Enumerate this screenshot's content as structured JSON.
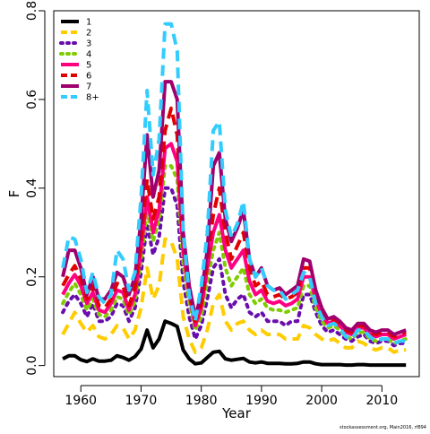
{
  "credit": "stockassessment.org, Main2016, rf894",
  "chart_data": {
    "type": "line",
    "xlabel": "Year",
    "ylabel": "F",
    "xlim": [
      1955.5,
      2016.2
    ],
    "ylim": [
      -0.025,
      0.8
    ],
    "x_ticks": [
      1960,
      1970,
      1980,
      1990,
      2000,
      2010
    ],
    "y_ticks": [
      0.0,
      0.2,
      0.4,
      0.6,
      0.8
    ],
    "x_tick_labels": [
      "1960",
      "1970",
      "1980",
      "1990",
      "2000",
      "2010"
    ],
    "y_tick_labels": [
      "0.0",
      "0.2",
      "0.4",
      "0.6",
      "0.8"
    ],
    "grid": false,
    "legend_position": "top-left",
    "x": [
      1957,
      1958,
      1959,
      1960,
      1961,
      1962,
      1963,
      1964,
      1965,
      1966,
      1967,
      1968,
      1969,
      1970,
      1971,
      1972,
      1973,
      1974,
      1975,
      1976,
      1977,
      1978,
      1979,
      1980,
      1981,
      1982,
      1983,
      1984,
      1985,
      1986,
      1987,
      1988,
      1989,
      1990,
      1991,
      1992,
      1993,
      1994,
      1995,
      1996,
      1997,
      1998,
      1999,
      2000,
      2001,
      2002,
      2003,
      2004,
      2005,
      2006,
      2007,
      2008,
      2009,
      2010,
      2011,
      2012,
      2013,
      2014
    ],
    "series": [
      {
        "name": "1",
        "color": "#000000",
        "dash": "solid",
        "values": [
          0.015,
          0.022,
          0.022,
          0.013,
          0.009,
          0.015,
          0.01,
          0.01,
          0.012,
          0.022,
          0.018,
          0.012,
          0.02,
          0.037,
          0.08,
          0.04,
          0.06,
          0.1,
          0.095,
          0.088,
          0.035,
          0.015,
          0.004,
          0.006,
          0.018,
          0.03,
          0.032,
          0.015,
          0.012,
          0.014,
          0.016,
          0.008,
          0.006,
          0.008,
          0.005,
          0.005,
          0.005,
          0.004,
          0.004,
          0.005,
          0.008,
          0.008,
          0.004,
          0.002,
          0.002,
          0.002,
          0.002,
          0.001,
          0.001,
          0.002,
          0.002,
          0.001,
          0.001,
          0.001,
          0.001,
          0.001,
          0.001,
          0.001
        ]
      },
      {
        "name": "2",
        "color": "#ffcc00",
        "dash": "dashed",
        "values": [
          0.07,
          0.095,
          0.12,
          0.095,
          0.075,
          0.09,
          0.065,
          0.06,
          0.07,
          0.09,
          0.085,
          0.06,
          0.08,
          0.13,
          0.22,
          0.15,
          0.18,
          0.285,
          0.28,
          0.24,
          0.11,
          0.06,
          0.03,
          0.04,
          0.08,
          0.14,
          0.16,
          0.1,
          0.08,
          0.095,
          0.1,
          0.08,
          0.07,
          0.08,
          0.07,
          0.07,
          0.07,
          0.06,
          0.06,
          0.06,
          0.09,
          0.085,
          0.07,
          0.06,
          0.055,
          0.06,
          0.05,
          0.04,
          0.04,
          0.055,
          0.05,
          0.04,
          0.035,
          0.04,
          0.04,
          0.03,
          0.035,
          0.035
        ]
      },
      {
        "name": "3",
        "color": "#6a0dad",
        "dash": "dotted",
        "values": [
          0.12,
          0.145,
          0.16,
          0.14,
          0.11,
          0.14,
          0.1,
          0.1,
          0.11,
          0.14,
          0.135,
          0.1,
          0.13,
          0.21,
          0.32,
          0.25,
          0.29,
          0.4,
          0.4,
          0.36,
          0.19,
          0.11,
          0.06,
          0.09,
          0.15,
          0.22,
          0.24,
          0.16,
          0.13,
          0.15,
          0.16,
          0.12,
          0.11,
          0.12,
          0.1,
          0.1,
          0.1,
          0.09,
          0.1,
          0.1,
          0.16,
          0.16,
          0.12,
          0.09,
          0.075,
          0.08,
          0.07,
          0.06,
          0.055,
          0.065,
          0.07,
          0.055,
          0.05,
          0.055,
          0.055,
          0.045,
          0.05,
          0.05
        ]
      },
      {
        "name": "4",
        "color": "#7fcc00",
        "dash": "dotted",
        "values": [
          0.14,
          0.165,
          0.185,
          0.16,
          0.125,
          0.15,
          0.115,
          0.11,
          0.125,
          0.155,
          0.15,
          0.115,
          0.145,
          0.24,
          0.35,
          0.28,
          0.33,
          0.45,
          0.45,
          0.42,
          0.23,
          0.14,
          0.08,
          0.11,
          0.19,
          0.26,
          0.3,
          0.22,
          0.18,
          0.2,
          0.22,
          0.16,
          0.14,
          0.15,
          0.13,
          0.125,
          0.125,
          0.12,
          0.125,
          0.13,
          0.18,
          0.18,
          0.13,
          0.1,
          0.085,
          0.09,
          0.08,
          0.065,
          0.06,
          0.075,
          0.075,
          0.06,
          0.055,
          0.06,
          0.06,
          0.05,
          0.055,
          0.06
        ]
      },
      {
        "name": "5",
        "color": "#ff0080",
        "dash": "solid",
        "values": [
          0.16,
          0.185,
          0.205,
          0.18,
          0.14,
          0.165,
          0.125,
          0.12,
          0.14,
          0.17,
          0.165,
          0.125,
          0.16,
          0.265,
          0.38,
          0.3,
          0.35,
          0.49,
          0.5,
          0.46,
          0.26,
          0.16,
          0.09,
          0.13,
          0.22,
          0.3,
          0.34,
          0.26,
          0.22,
          0.24,
          0.26,
          0.19,
          0.16,
          0.17,
          0.145,
          0.14,
          0.145,
          0.135,
          0.14,
          0.15,
          0.2,
          0.2,
          0.15,
          0.115,
          0.095,
          0.1,
          0.09,
          0.075,
          0.07,
          0.085,
          0.085,
          0.07,
          0.065,
          0.07,
          0.07,
          0.06,
          0.065,
          0.07
        ]
      },
      {
        "name": "6",
        "color": "#e00000",
        "dash": "dashed",
        "values": [
          0.18,
          0.205,
          0.225,
          0.195,
          0.15,
          0.18,
          0.135,
          0.13,
          0.15,
          0.185,
          0.18,
          0.135,
          0.175,
          0.29,
          0.42,
          0.33,
          0.38,
          0.53,
          0.58,
          0.52,
          0.28,
          0.17,
          0.1,
          0.14,
          0.24,
          0.34,
          0.4,
          0.3,
          0.24,
          0.27,
          0.3,
          0.22,
          0.18,
          0.19,
          0.16,
          0.155,
          0.16,
          0.15,
          0.155,
          0.165,
          0.22,
          0.22,
          0.16,
          0.125,
          0.1,
          0.105,
          0.095,
          0.08,
          0.075,
          0.09,
          0.09,
          0.075,
          0.07,
          0.075,
          0.075,
          0.065,
          0.07,
          0.075
        ]
      },
      {
        "name": "7",
        "color": "#a0006e",
        "dash": "solid",
        "values": [
          0.2,
          0.26,
          0.26,
          0.22,
          0.16,
          0.2,
          0.15,
          0.15,
          0.17,
          0.21,
          0.2,
          0.16,
          0.2,
          0.33,
          0.52,
          0.38,
          0.44,
          0.64,
          0.64,
          0.6,
          0.3,
          0.18,
          0.11,
          0.16,
          0.26,
          0.45,
          0.48,
          0.33,
          0.28,
          0.31,
          0.35,
          0.24,
          0.2,
          0.22,
          0.18,
          0.17,
          0.175,
          0.16,
          0.17,
          0.18,
          0.24,
          0.235,
          0.17,
          0.13,
          0.105,
          0.11,
          0.1,
          0.085,
          0.08,
          0.095,
          0.095,
          0.08,
          0.075,
          0.08,
          0.08,
          0.07,
          0.075,
          0.08
        ]
      },
      {
        "name": "8+",
        "color": "#33ccff",
        "dash": "dashed",
        "values": [
          0.22,
          0.29,
          0.285,
          0.24,
          0.165,
          0.21,
          0.155,
          0.14,
          0.16,
          0.26,
          0.24,
          0.17,
          0.21,
          0.38,
          0.62,
          0.43,
          0.51,
          0.77,
          0.77,
          0.71,
          0.3,
          0.16,
          0.1,
          0.18,
          0.3,
          0.53,
          0.55,
          0.35,
          0.29,
          0.32,
          0.37,
          0.24,
          0.2,
          0.22,
          0.18,
          0.17,
          0.17,
          0.15,
          0.16,
          0.17,
          0.21,
          0.2,
          0.14,
          0.11,
          0.09,
          0.095,
          0.085,
          0.065,
          0.06,
          0.08,
          0.08,
          0.065,
          0.055,
          0.06,
          0.06,
          0.05,
          0.055,
          0.055
        ]
      }
    ]
  }
}
